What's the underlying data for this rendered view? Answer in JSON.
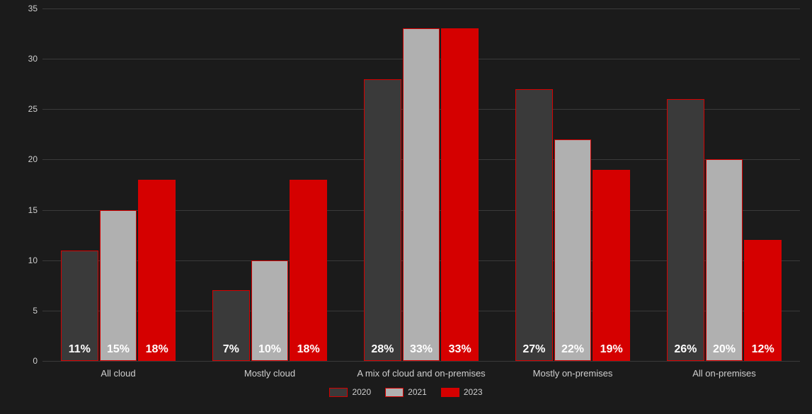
{
  "chart": {
    "type": "grouped-bar",
    "background_color": "#1b1b1b",
    "grid_color": "#3a3a3a",
    "text_color": "#cfcfcf",
    "bar_value_label_color": "#ffffff",
    "ylim": [
      0,
      35
    ],
    "ytick_step": 5,
    "yticks": [
      0,
      5,
      10,
      15,
      20,
      25,
      30,
      35
    ],
    "value_label_fontsize": 16,
    "axis_label_fontsize": 13,
    "tick_fontsize": 12,
    "bar_border_color": "#d50000",
    "bar_border_width": 1,
    "categories": [
      "All cloud",
      "Mostly cloud",
      "A mix of cloud and on-premises",
      "Mostly on-premises",
      "All on-premises"
    ],
    "series": [
      {
        "name": "2020",
        "color": "#3a3a3a",
        "values": [
          11,
          7,
          28,
          27,
          26
        ]
      },
      {
        "name": "2021",
        "color": "#b0b0b0",
        "values": [
          15,
          10,
          33,
          22,
          20
        ]
      },
      {
        "name": "2023",
        "color": "#d50000",
        "values": [
          18,
          18,
          33,
          19,
          12
        ]
      }
    ],
    "value_suffix": "%",
    "legend_position": "bottom"
  }
}
